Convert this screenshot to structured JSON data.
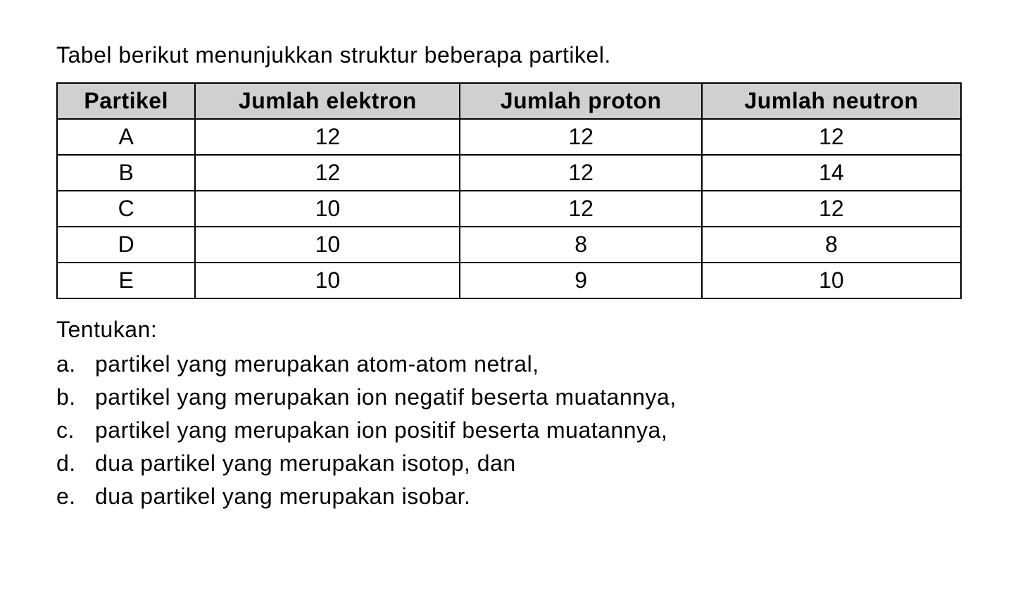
{
  "intro": "Tabel berikut menunjukkan struktur beberapa partikel.",
  "table": {
    "headers": {
      "col0": "Partikel",
      "col1": "Jumlah elektron",
      "col2": "Jumlah proton",
      "col3": "Jumlah neutron"
    },
    "rows": [
      {
        "particle": "A",
        "electrons": "12",
        "protons": "12",
        "neutrons": "12"
      },
      {
        "particle": "B",
        "electrons": "12",
        "protons": "12",
        "neutrons": "14"
      },
      {
        "particle": "C",
        "electrons": "10",
        "protons": "12",
        "neutrons": "12"
      },
      {
        "particle": "D",
        "electrons": "10",
        "protons": "8",
        "neutrons": "8"
      },
      {
        "particle": "E",
        "electrons": "10",
        "protons": "9",
        "neutrons": "10"
      }
    ],
    "styling": {
      "type": "table",
      "header_bg_color": "#d0d0d0",
      "cell_bg_color": "#ffffff",
      "border_color": "#000000",
      "border_width": 2,
      "font_size": 32,
      "header_font_weight": "bold",
      "text_align": "center",
      "columns": 4
    }
  },
  "instruction": "Tentukan:",
  "questions": [
    {
      "label": "a.",
      "text": "partikel yang merupakan atom-atom netral,"
    },
    {
      "label": "b.",
      "text": "partikel yang merupakan ion negatif beserta muatannya,"
    },
    {
      "label": "c.",
      "text": "partikel yang merupakan ion positif beserta muatannya,"
    },
    {
      "label": "d.",
      "text": "dua partikel yang merupakan isotop, dan"
    },
    {
      "label": "e.",
      "text": "dua partikel yang merupakan isobar."
    }
  ],
  "page_styling": {
    "background_color": "#ffffff",
    "text_color": "#000000",
    "body_font_size": 32,
    "font_family": "Arial"
  }
}
